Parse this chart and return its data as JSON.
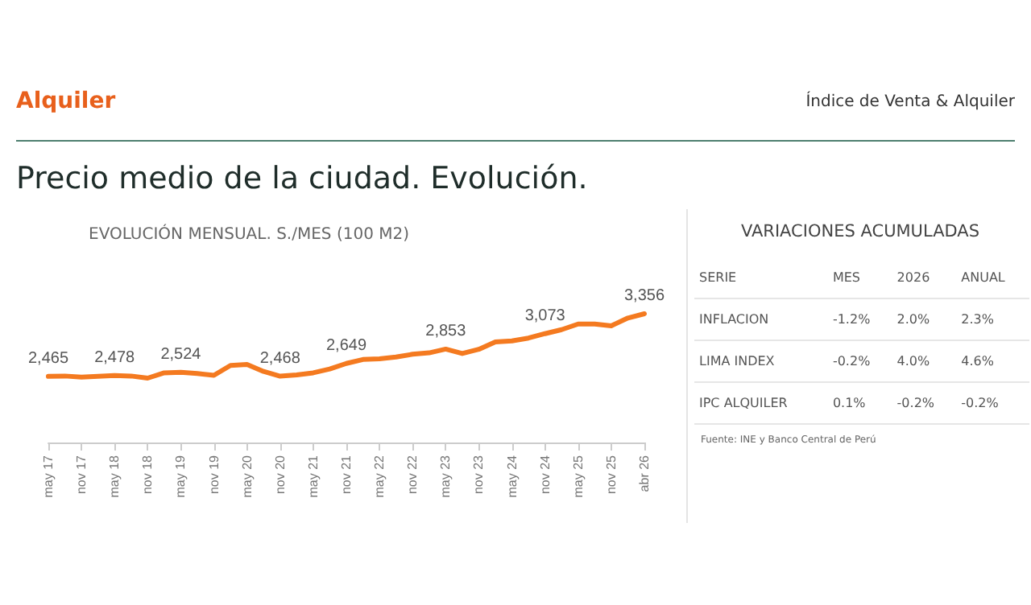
{
  "chart_data": [
    {
      "type": "line",
      "title": "EVOLUCIÓN MENSUAL. S./MES (100 M2)",
      "annotations": [
        "Alquiler",
        "Índice de Venta & Alquiler",
        "Precio medio de la ciudad. Evolución."
      ],
      "categories": [
        "may 17",
        null,
        "nov 17",
        null,
        "may 18",
        null,
        "nov 18",
        null,
        "may 19",
        null,
        "nov 19",
        null,
        "may 20",
        null,
        "nov 20",
        null,
        "may 21",
        null,
        "nov 21",
        null,
        "may 22",
        null,
        "nov 22",
        null,
        "may 23",
        null,
        "nov 23",
        null,
        "may 24",
        null,
        "nov 24",
        null,
        "may 25",
        null,
        "nov 25",
        null,
        "abr 26"
      ],
      "series": [
        {
          "color": "#f47a20",
          "values": [
            2465,
            2470,
            2455,
            2465,
            2478,
            2470,
            2440,
            2515,
            2524,
            2505,
            2480,
            2620,
            2635,
            2535,
            2468,
            2485,
            2515,
            2570,
            2649,
            2705,
            2715,
            2740,
            2780,
            2800,
            2853,
            2790,
            2850,
            2955,
            2970,
            3010,
            3073,
            3130,
            3210,
            3210,
            3185,
            3295,
            3356
          ],
          "value_labels": [
            "2,465",
            null,
            null,
            null,
            "2,478",
            null,
            null,
            null,
            "2,524",
            null,
            null,
            null,
            null,
            null,
            "2,468",
            null,
            null,
            null,
            "2,649",
            null,
            null,
            null,
            null,
            null,
            "2,853",
            null,
            null,
            null,
            null,
            null,
            "3,073",
            null,
            null,
            null,
            null,
            null,
            "3,356"
          ]
        }
      ],
      "marker": "none",
      "line_style": "solid",
      "grid": false,
      "tick_labels": "x"
    },
    {
      "type": "other",
      "title": "VARIACIONES ACUMULADAS",
      "ylabel": "SERIE",
      "categories": [
        "MES",
        "2026",
        "ANUAL"
      ],
      "y_categories": [
        "INFLACION",
        "LIMA INDEX",
        "IPC ALQUILER"
      ],
      "cell_labels": [
        [
          "-1.2%",
          "2.0%",
          "2.3%"
        ],
        [
          "-0.2%",
          "4.0%",
          "4.6%"
        ],
        [
          "0.1%",
          "-0.2%",
          "-0.2%"
        ]
      ],
      "annotations": [
        "Fuente: INE y Banco Central de Perú"
      ]
    }
  ]
}
